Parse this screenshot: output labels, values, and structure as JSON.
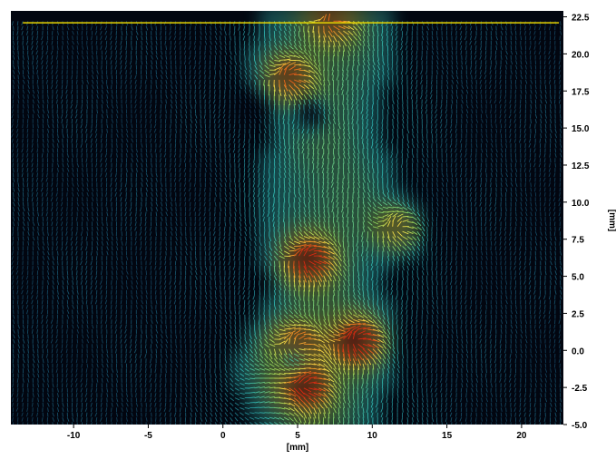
{
  "chart_data": {
    "type": "vector-field",
    "xlabel": "[mm]",
    "ylabel": "[mm]",
    "xlim": [
      -14.2,
      22.8
    ],
    "ylim": [
      -5.0,
      22.9
    ],
    "x_ticks": [
      -10,
      -5,
      0,
      5,
      10,
      15,
      20
    ],
    "x_tick_labels": [
      "-10",
      "-5",
      "0",
      "5",
      "10",
      "15",
      "20"
    ],
    "y_ticks": [
      -5.0,
      -2.5,
      0.0,
      2.5,
      5.0,
      7.5,
      10.0,
      12.5,
      15.0,
      17.5,
      20.0,
      22.5
    ],
    "y_tick_labels": [
      "-5.0",
      "-2.5",
      "0.0",
      "2.5",
      "5.0",
      "7.5",
      "10.0",
      "12.5",
      "15.0",
      "17.5",
      "20.0",
      "22.5"
    ],
    "surface_line_y": 22.1,
    "grid": false,
    "colormap": [
      "#0a1e46",
      "#1f6e8c",
      "#2fb5b0",
      "#8fd35c",
      "#f2e14a",
      "#f07a1e",
      "#d62a12"
    ],
    "dominant_flow": "downward",
    "high_velocity_regions": [
      {
        "x": 4.3,
        "y": 18.5,
        "level": 0.72
      },
      {
        "x": 7.2,
        "y": 22.2,
        "level": 0.6
      },
      {
        "x": 5.6,
        "y": 6.2,
        "level": 0.9
      },
      {
        "x": 11.7,
        "y": 8.3,
        "level": 0.55
      },
      {
        "x": 8.9,
        "y": 0.7,
        "level": 1.0
      },
      {
        "x": 5.4,
        "y": -2.4,
        "level": 0.85
      },
      {
        "x": 4.8,
        "y": 0.4,
        "level": 0.8
      }
    ],
    "low_velocity_regions": [
      {
        "x": 1.8,
        "y": 16.5
      },
      {
        "x": 4.6,
        "y": -0.5
      },
      {
        "x": 5.8,
        "y": 16.0
      }
    ]
  }
}
